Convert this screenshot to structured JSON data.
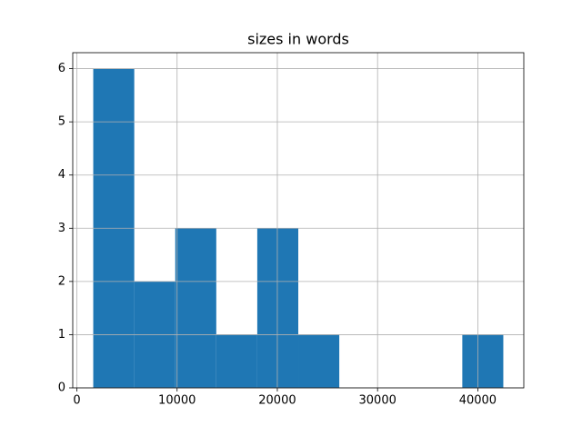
{
  "chart_data": {
    "type": "histogram",
    "title": "sizes in words",
    "bins": [
      1636,
      5727,
      9818,
      13909,
      18000,
      22091,
      26182,
      30273,
      34364,
      38455,
      42545
    ],
    "values": [
      6,
      2,
      3,
      1,
      3,
      1,
      0,
      0,
      0,
      1
    ],
    "color": "#1f77b4",
    "xlim": [
      -409,
      44590
    ],
    "ylim": [
      0,
      6.3
    ],
    "xticks": [
      0,
      10000,
      20000,
      30000,
      40000
    ],
    "yticks": [
      0,
      1,
      2,
      3,
      4,
      5,
      6
    ],
    "grid": true
  }
}
